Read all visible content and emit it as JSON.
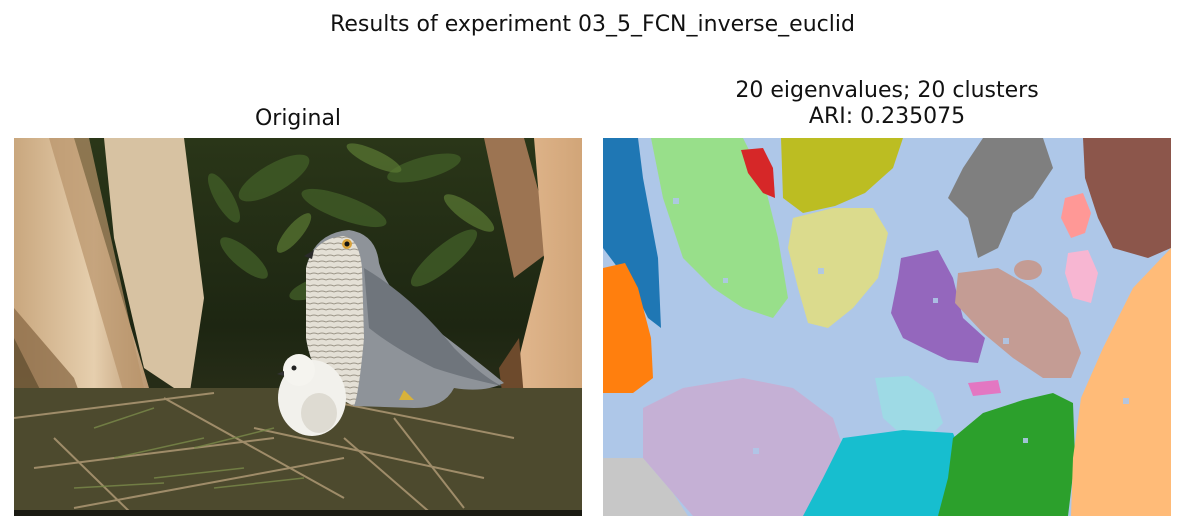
{
  "figure": {
    "suptitle": "Results of experiment 03_5_FCN_inverse_euclid"
  },
  "panels": {
    "original": {
      "title": "Original",
      "image_description": "hawk with chick in nest among branches"
    },
    "segmentation": {
      "title_line1": "20 eigenvalues; 20 clusters",
      "title_line2": "ARI: 0.235075",
      "image_description": "segmentation map with 20 colored clusters"
    }
  },
  "colors": {
    "background_cluster": "#aec7e8",
    "clusters": [
      "#1f77b4",
      "#98df8a",
      "#d62728",
      "#bcbd22",
      "#dbdb8d",
      "#7f7f7f",
      "#ff9896",
      "#8c564b",
      "#ff7f0e",
      "#9467bd",
      "#c49c94",
      "#f7b6d2",
      "#e377c2",
      "#9edae5",
      "#c5b0d5",
      "#17becf",
      "#2ca02c",
      "#ffbb78",
      "#c7c7c7"
    ]
  }
}
